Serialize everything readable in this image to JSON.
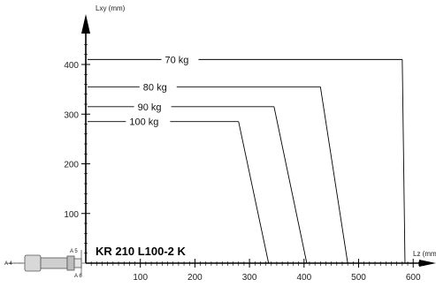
{
  "chart_data": {
    "type": "line",
    "title": "KR 210 L100-2 K",
    "xlabel": "Lz (mm)",
    "ylabel": "Lxy (mm)",
    "xlim": [
      0,
      650
    ],
    "ylim": [
      0,
      460
    ],
    "x_ticks": [
      100,
      200,
      300,
      400,
      500,
      600
    ],
    "y_ticks": [
      100,
      200,
      300,
      400
    ],
    "grid": false,
    "series": [
      {
        "name": "70 kg",
        "points": [
          [
            0,
            410
          ],
          [
            580,
            410
          ],
          [
            585,
            0
          ]
        ]
      },
      {
        "name": "80 kg",
        "points": [
          [
            0,
            355
          ],
          [
            430,
            355
          ],
          [
            480,
            0
          ]
        ]
      },
      {
        "name": "90 kg",
        "points": [
          [
            0,
            315
          ],
          [
            345,
            315
          ],
          [
            405,
            0
          ]
        ]
      },
      {
        "name": "100 kg",
        "points": [
          [
            0,
            285
          ],
          [
            280,
            285
          ],
          [
            335,
            0
          ]
        ]
      }
    ],
    "annotations": [
      "A 5",
      "A 4",
      "A 6"
    ]
  },
  "icons": {
    "robot_wrist": "robot-wrist-flange-icon"
  }
}
